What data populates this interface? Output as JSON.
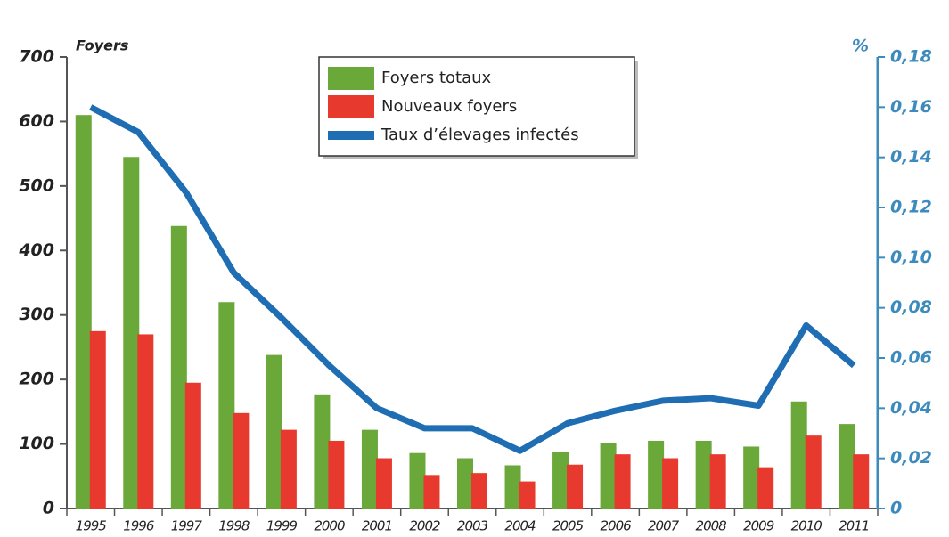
{
  "chart_data": {
    "type": "bar",
    "y_label": "Foyers",
    "y2_label": "%",
    "categories": [
      "1995",
      "1996",
      "1997",
      "1998",
      "1999",
      "2000",
      "2001",
      "2002",
      "2003",
      "2004",
      "2005",
      "2006",
      "2007",
      "2008",
      "2009",
      "2010",
      "2011"
    ],
    "series": [
      {
        "name": "Foyers totaux",
        "color": "#6aa83a",
        "values": [
          610,
          545,
          438,
          320,
          238,
          177,
          122,
          86,
          78,
          67,
          87,
          102,
          105,
          105,
          96,
          166,
          131
        ]
      },
      {
        "name": "Nouveaux foyers",
        "color": "#e8392e",
        "values": [
          275,
          270,
          195,
          148,
          122,
          105,
          78,
          52,
          55,
          42,
          68,
          84,
          78,
          84,
          64,
          113,
          84
        ]
      },
      {
        "name": "Taux d’élevages infectés",
        "color": "#1f6db3",
        "axis": "y2",
        "type": "line",
        "values": [
          0.16,
          0.15,
          0.126,
          0.094,
          0.076,
          0.057,
          0.04,
          0.032,
          0.032,
          0.023,
          0.034,
          0.039,
          0.043,
          0.044,
          0.041,
          0.073,
          0.057
        ]
      }
    ],
    "ylim": [
      0,
      700
    ],
    "yticks": [
      0,
      100,
      200,
      300,
      400,
      500,
      600,
      700
    ],
    "y2lim": [
      0,
      0.18
    ],
    "y2ticks": [
      0,
      {
        "value": 0.02,
        "label": "0,02"
      },
      {
        "value": 0.04,
        "label": "0,04"
      },
      {
        "value": 0.06,
        "label": "0,06"
      },
      {
        "value": 0.08,
        "label": "0,08"
      },
      {
        "value": 0.1,
        "label": "0,10"
      },
      {
        "value": 0.12,
        "label": "0,12"
      },
      {
        "value": 0.14,
        "label": "0,14"
      },
      {
        "value": 0.16,
        "label": "0,16"
      },
      {
        "value": 0.18,
        "label": "0,18"
      }
    ],
    "legend": "top-center",
    "grid": false
  }
}
